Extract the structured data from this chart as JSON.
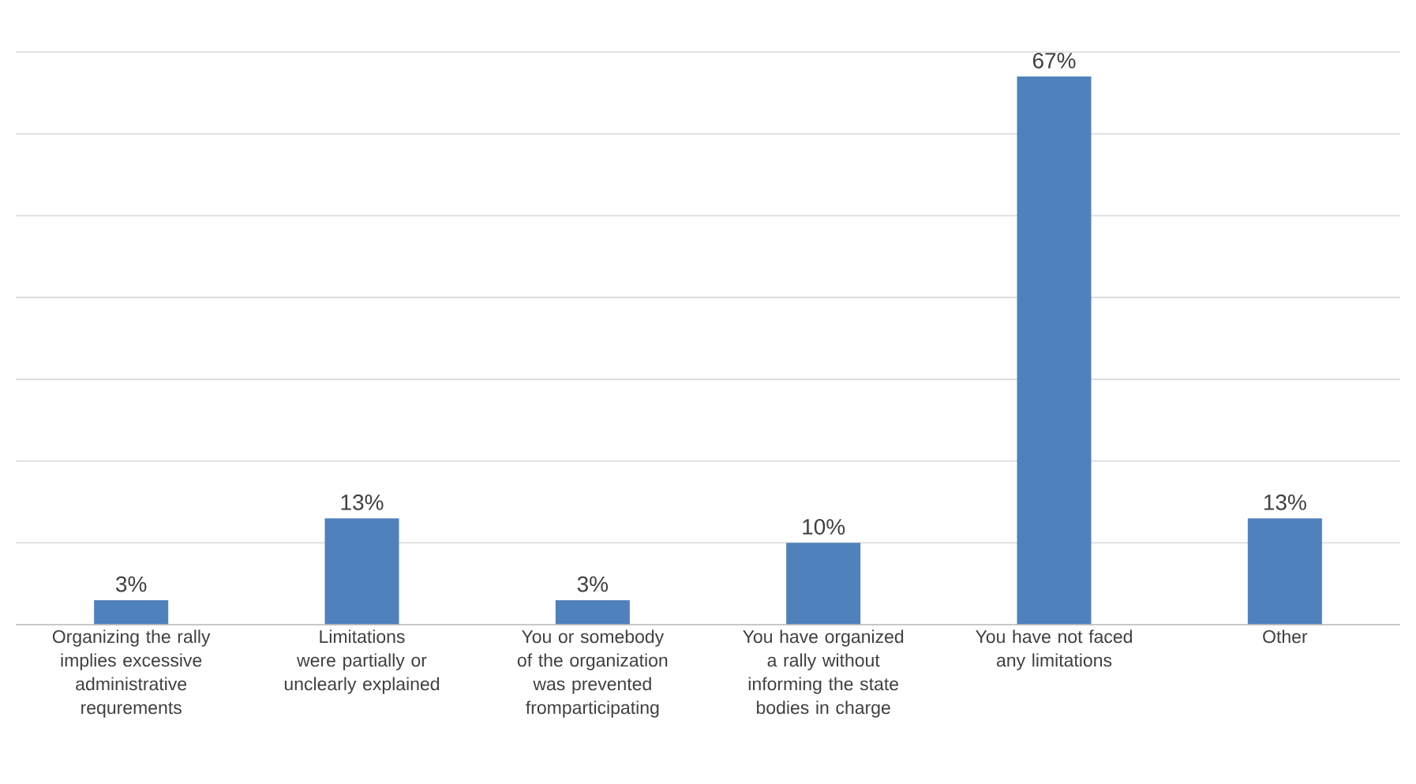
{
  "chart_data": {
    "type": "bar",
    "categories": [
      "Organizing the rally implies excessive administrative requrements",
      "Limitations were partially or unclearly explained",
      "You or somebody of the organization was prevented fromparticipating",
      "You have organized a rally without informing the state bodies in charge",
      "You have not faced any limitations",
      "Other"
    ],
    "values": [
      3,
      13,
      3,
      10,
      67,
      13
    ],
    "value_labels": [
      "3%",
      "13%",
      "3%",
      "10%",
      "67%",
      "13%"
    ],
    "color": "#4f81bd",
    "ylim": [
      0,
      70
    ],
    "yticks": [
      {
        "value": 0,
        "label": null
      },
      {
        "value": 10,
        "label": null
      },
      {
        "value": 20,
        "label": null
      },
      {
        "value": 30,
        "label": null
      },
      {
        "value": 40,
        "label": null
      },
      {
        "value": 50,
        "label": null
      },
      {
        "value": 60,
        "label": null
      },
      {
        "value": 70,
        "label": null
      }
    ],
    "grid": "y",
    "tick_labels": "x"
  }
}
